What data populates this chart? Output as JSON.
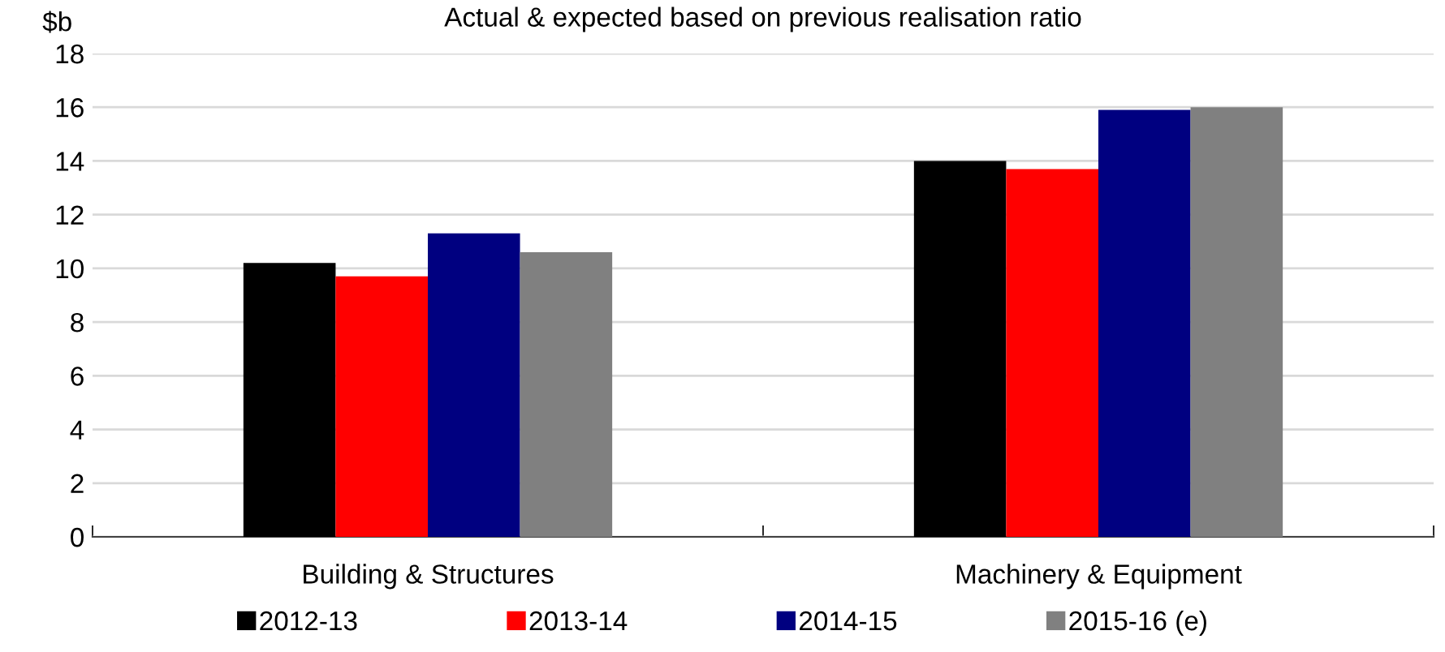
{
  "chart_data": {
    "type": "bar",
    "title": "Actual & expected based on previous realisation ratio",
    "ylabel": "$b",
    "categories": [
      "Building & Structures",
      "Machinery & Equipment"
    ],
    "series": [
      {
        "name": "2012-13",
        "color": "#000000",
        "values": [
          10.2,
          14.0
        ]
      },
      {
        "name": "2013-14",
        "color": "#ff0000",
        "values": [
          9.7,
          13.7
        ]
      },
      {
        "name": "2014-15",
        "color": "#000080",
        "values": [
          11.3,
          15.9
        ]
      },
      {
        "name": "2015-16 (e)",
        "color": "#808080",
        "values": [
          10.6,
          16.0
        ]
      }
    ],
    "ylim": [
      0,
      18
    ],
    "yticks": [
      0,
      2,
      4,
      6,
      8,
      10,
      12,
      14,
      16,
      18
    ],
    "grid": "y",
    "legend": "bottom"
  }
}
